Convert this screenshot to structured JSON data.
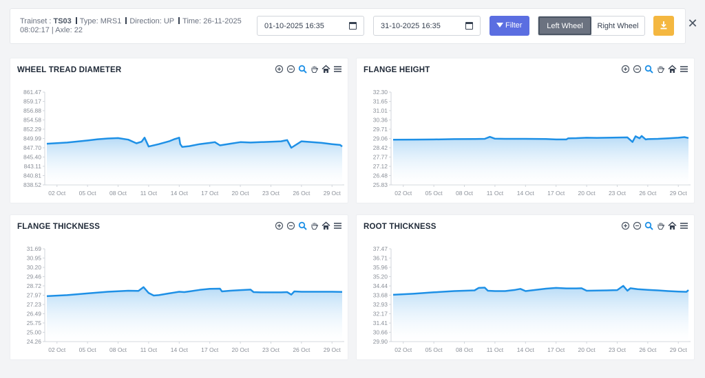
{
  "header": {
    "trainset_label": "Trainset : ",
    "trainset": "TS03",
    "type_label": "Type: ",
    "type": "MRS1",
    "direction_label": "Direction: ",
    "direction": "UP",
    "time_label": "Time: ",
    "time": "26-11-2025 08:02:17",
    "axle_label": "| Axle: ",
    "axle": "22",
    "from_date": "01-10-2025 16:35",
    "to_date": "31-10-2025 16:35",
    "filter_label": "Filter",
    "left_wheel_label": "Left Wheel",
    "right_wheel_label": "Right Wheel",
    "selected_wheel": "Left Wheel",
    "close_symbol": "✕"
  },
  "colors": {
    "line": "#1e90e6",
    "fill_top": "#a9d4f5",
    "fill_bottom": "#ffffff",
    "accent_filter": "#5b6ee1",
    "accent_download": "#f4b740"
  },
  "chart_data": [
    {
      "type": "area",
      "title": "WHEEL TREAD DIAMETER",
      "y_ticks": [
        "861.47",
        "859.17",
        "856.88",
        "854.58",
        "852.29",
        "849.99",
        "847.70",
        "845.40",
        "843.11",
        "840.81",
        "838.52"
      ],
      "ylim": [
        838.52,
        861.47
      ],
      "x_ticks": [
        "02 Oct",
        "05 Oct",
        "08 Oct",
        "11 Oct",
        "14 Oct",
        "17 Oct",
        "20 Oct",
        "23 Oct",
        "26 Oct",
        "29 Oct"
      ],
      "xlim": [
        0.8,
        30.2
      ],
      "x": [
        1,
        3,
        5,
        6,
        7,
        8,
        9,
        9.8,
        10.3,
        10.6,
        11,
        12,
        13,
        13.5,
        14,
        14.1,
        14.3,
        15,
        16,
        17,
        17.5,
        18,
        19,
        20,
        21,
        22,
        23,
        24,
        24.4,
        24.6,
        25,
        26,
        27,
        28,
        29,
        29.8,
        30
      ],
      "values": [
        848.7,
        849.0,
        849.5,
        849.8,
        850.0,
        850.1,
        849.7,
        848.8,
        849.2,
        850.2,
        848.0,
        848.6,
        849.3,
        849.8,
        850.2,
        848.6,
        847.9,
        848.1,
        848.6,
        848.9,
        849.1,
        848.3,
        848.7,
        849.1,
        849.0,
        849.1,
        849.2,
        849.3,
        849.5,
        849.6,
        847.7,
        849.3,
        849.1,
        848.9,
        848.6,
        848.4,
        848.0
      ]
    },
    {
      "type": "area",
      "title": "FLANGE HEIGHT",
      "y_ticks": [
        "32.30",
        "31.65",
        "31.01",
        "30.36",
        "29.71",
        "29.06",
        "28.42",
        "27.77",
        "27.12",
        "26.48",
        "25.83"
      ],
      "ylim": [
        25.83,
        32.3
      ],
      "x_ticks": [
        "02 Oct",
        "05 Oct",
        "08 Oct",
        "11 Oct",
        "14 Oct",
        "17 Oct",
        "20 Oct",
        "23 Oct",
        "26 Oct",
        "29 Oct"
      ],
      "xlim": [
        0.8,
        30.2
      ],
      "x": [
        1,
        3,
        5,
        7,
        9,
        10,
        10.5,
        11,
        12,
        14,
        16,
        17,
        18,
        18.2,
        19,
        20,
        21,
        22,
        23,
        24,
        24.5,
        24.8,
        25.2,
        25.4,
        25.8,
        26,
        27,
        28,
        29,
        29.6,
        30
      ],
      "values": [
        28.98,
        28.99,
        29.0,
        29.02,
        29.03,
        29.04,
        29.18,
        29.05,
        29.04,
        29.04,
        29.03,
        29.0,
        29.0,
        29.08,
        29.09,
        29.12,
        29.11,
        29.12,
        29.13,
        29.14,
        28.82,
        29.22,
        29.08,
        29.24,
        29.0,
        29.02,
        29.04,
        29.08,
        29.12,
        29.16,
        29.1
      ]
    },
    {
      "type": "area",
      "title": "FLANGE THICKNESS",
      "y_ticks": [
        "31.69",
        "30.95",
        "30.20",
        "29.46",
        "28.72",
        "27.97",
        "27.23",
        "26.49",
        "25.75",
        "25.00",
        "24.26"
      ],
      "ylim": [
        24.26,
        31.69
      ],
      "x_ticks": [
        "02 Oct",
        "05 Oct",
        "08 Oct",
        "11 Oct",
        "14 Oct",
        "17 Oct",
        "20 Oct",
        "23 Oct",
        "26 Oct",
        "29 Oct"
      ],
      "xlim": [
        0.8,
        30.2
      ],
      "x": [
        1,
        3,
        5,
        7,
        9,
        10,
        10.5,
        11,
        11.5,
        12,
        13,
        14,
        14.5,
        15,
        16,
        17,
        18,
        18.2,
        19,
        20,
        21,
        21.3,
        22,
        23,
        24,
        24.6,
        25,
        25.3,
        26,
        27,
        28,
        29,
        30
      ],
      "values": [
        27.9,
        27.98,
        28.12,
        28.25,
        28.33,
        28.32,
        28.62,
        28.15,
        27.95,
        27.98,
        28.12,
        28.25,
        28.22,
        28.28,
        28.4,
        28.48,
        28.5,
        28.28,
        28.33,
        28.38,
        28.42,
        28.22,
        28.2,
        28.2,
        28.2,
        28.22,
        28.02,
        28.28,
        28.25,
        28.25,
        28.25,
        28.25,
        28.24
      ]
    },
    {
      "type": "area",
      "title": "ROOT THICKNESS",
      "y_ticks": [
        "37.47",
        "36.71",
        "35.96",
        "35.20",
        "34.44",
        "33.68",
        "32.93",
        "32.17",
        "31.41",
        "30.66",
        "29.90"
      ],
      "ylim": [
        29.9,
        37.47
      ],
      "x_ticks": [
        "02 Oct",
        "05 Oct",
        "08 Oct",
        "11 Oct",
        "14 Oct",
        "17 Oct",
        "20 Oct",
        "23 Oct",
        "26 Oct",
        "29 Oct"
      ],
      "xlim": [
        0.8,
        30.2
      ],
      "x": [
        1,
        3,
        5,
        7,
        8,
        9,
        9.4,
        10,
        10.3,
        11,
        12,
        13,
        13.5,
        14,
        15,
        16,
        17,
        18,
        19,
        19.5,
        20,
        21,
        22,
        23,
        23.6,
        24,
        24.3,
        25,
        26,
        27,
        28,
        29,
        29.8,
        30
      ],
      "values": [
        33.72,
        33.8,
        33.92,
        34.02,
        34.05,
        34.08,
        34.28,
        34.3,
        34.05,
        34.02,
        34.02,
        34.12,
        34.2,
        34.02,
        34.12,
        34.22,
        34.28,
        34.24,
        34.24,
        34.25,
        34.05,
        34.06,
        34.08,
        34.1,
        34.45,
        34.05,
        34.25,
        34.18,
        34.12,
        34.08,
        34.02,
        33.98,
        33.96,
        34.1
      ]
    }
  ]
}
